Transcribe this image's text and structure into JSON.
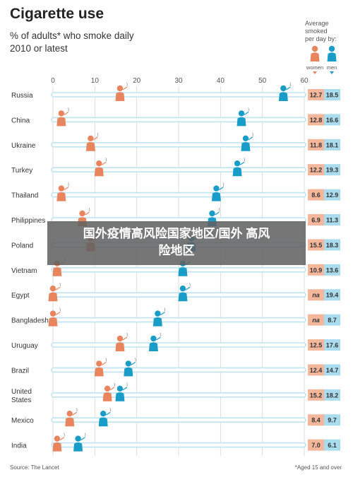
{
  "header": {
    "title": "Cigarette use",
    "subtitle_line1": "% of adults* who smoke daily",
    "subtitle_line2": "2010 or latest"
  },
  "legend": {
    "title_line1": "Average",
    "title_line2": "smoked",
    "title_line3": "per day by:",
    "women_label": "women",
    "men_label": "men"
  },
  "footer": {
    "source": "Source: The Lancet",
    "footnote": "*Aged 15 and over"
  },
  "watermark": {
    "line1": "国外疫情高风险国家地区/国外 高风",
    "line2": "险地区"
  },
  "colors": {
    "women": "#e8845e",
    "men": "#1a9cc9",
    "track": "#bfe3ef",
    "women_cell": "#f4b79c",
    "men_cell": "#a9dcef"
  },
  "chart_data": {
    "type": "scatter",
    "xlim": [
      0,
      60
    ],
    "x_ticks": [
      "0",
      "10",
      "20",
      "30",
      "40",
      "50",
      "60"
    ],
    "categories": [
      "Russia",
      "China",
      "Ukraine",
      "Turkey",
      "Thailand",
      "Philippines",
      "Poland",
      "Vietnam",
      "Egypt",
      "Bangladesh",
      "Uruguay",
      "Brazil",
      "United States",
      "Mexico",
      "India"
    ],
    "series": [
      {
        "name": "women",
        "values": [
          16,
          2,
          9,
          11,
          2,
          7,
          9,
          1,
          0,
          0,
          16,
          11,
          13,
          4,
          1
        ]
      },
      {
        "name": "men",
        "values": [
          55,
          45,
          46,
          44,
          39,
          38,
          33,
          31,
          31,
          25,
          24,
          18,
          16,
          12,
          6
        ]
      }
    ],
    "per_day": {
      "women": [
        "12.7",
        "12.8",
        "11.8",
        "12.2",
        "8.6",
        "6.9",
        "15.5",
        "10.9",
        "na",
        "na",
        "12.5",
        "12.4",
        "15.2",
        "8.4",
        "7.0"
      ],
      "men": [
        "18.5",
        "16.6",
        "18.1",
        "19.3",
        "12.9",
        "11.3",
        "18.3",
        "13.6",
        "19.4",
        "8.7",
        "17.6",
        "14.7",
        "18.2",
        "9.7",
        "6.1"
      ]
    }
  }
}
